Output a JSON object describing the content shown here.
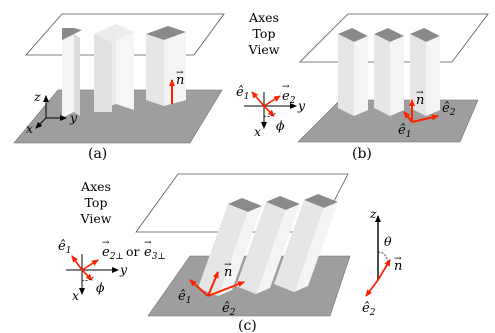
{
  "colors": {
    "floor": "#9e9e9e",
    "floor_edge": "#6e6e6e",
    "pillar_front": "#e6e6e6",
    "pillar_side": "#f4f4f4",
    "pillar_top": "#8a8a8a",
    "accent": "#ff2200",
    "ink": "#000000"
  },
  "panels": [
    {
      "caption": "(a)",
      "axes": {
        "z": "z",
        "x": "x",
        "y": "y"
      },
      "normal": {
        "base": "n",
        "mark": "→"
      }
    },
    {
      "caption": "(b)",
      "inset_title": [
        "Axes",
        "Top",
        "View"
      ],
      "inset": {
        "e1": "ê",
        "e1_sub": "1",
        "e2": "e",
        "e2_mark": "→",
        "e2_sub": "2",
        "y": "y",
        "x": "x",
        "phi": "ϕ"
      },
      "vectors": {
        "n": "n",
        "n_mark": "→",
        "e1": "ê",
        "e1_sub": "1",
        "e2": "ê",
        "e2_sub": "2"
      }
    },
    {
      "caption": "(c)",
      "inset_title": [
        "Axes",
        "Top",
        "View"
      ],
      "inset": {
        "e1": "ê",
        "e1_sub": "1",
        "e2perp": "e",
        "e2perp_mark": "→",
        "e2perp_sub": "2⊥",
        "or": "or",
        "e3perp": "e",
        "e3perp_mark": "→",
        "e3perp_sub": "3⊥",
        "y": "y",
        "x": "x",
        "phi": "ϕ"
      },
      "vectors": {
        "n": "n",
        "n_mark": "→",
        "e1": "ê",
        "e1_sub": "1",
        "e2": "ê",
        "e2_sub": "2"
      },
      "side_axes": {
        "z": "z",
        "theta": "θ",
        "n": "n",
        "n_mark": "→",
        "e2": "ê",
        "e2_sub": "2"
      }
    }
  ]
}
